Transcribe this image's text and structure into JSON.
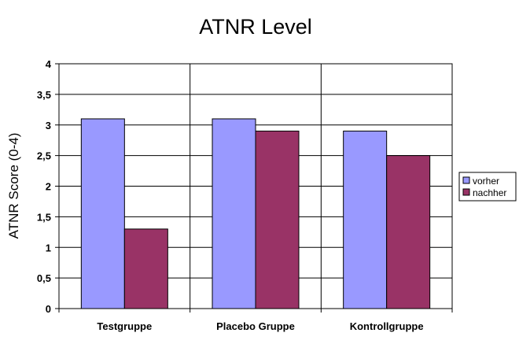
{
  "chart_data": {
    "type": "bar",
    "title": "ATNR Level",
    "xlabel": "",
    "ylabel": "ATNR Score (0-4)",
    "ylim": [
      0,
      4
    ],
    "yticks": [
      "0",
      "0,5",
      "1",
      "1,5",
      "2",
      "2,5",
      "3",
      "3,5",
      "4"
    ],
    "ytick_values": [
      0,
      0.5,
      1,
      1.5,
      2,
      2.5,
      3,
      3.5,
      4
    ],
    "categories": [
      "Testgruppe",
      "Placebo Gruppe",
      "Kontrollgruppe"
    ],
    "series": [
      {
        "name": "vorher",
        "values": [
          3.1,
          3.1,
          2.9
        ],
        "color": "#9999ff"
      },
      {
        "name": "nachher",
        "values": [
          1.3,
          2.9,
          2.5
        ],
        "color": "#993366"
      }
    ],
    "grid": true,
    "legend_position": "right"
  }
}
